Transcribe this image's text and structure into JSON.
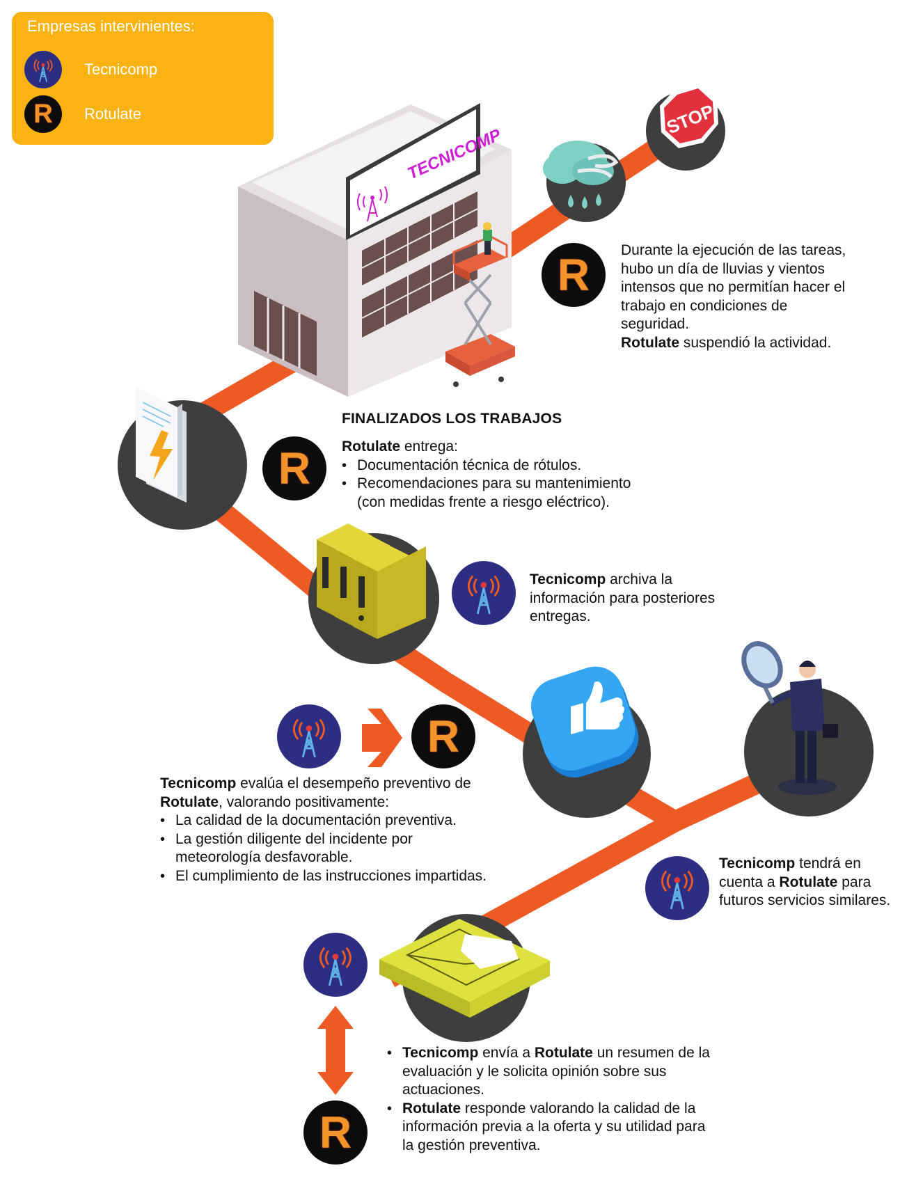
{
  "legend": {
    "title": "Empresas intervinientes:",
    "items": [
      {
        "label": "Tecnicomp",
        "logo": "tecnicomp-logo"
      },
      {
        "label": "Rotulate",
        "logo": "rotulate-logo"
      }
    ]
  },
  "building_sign": "TECNICOMP",
  "stop_sign": "STOP",
  "rotulate_logo_letter": "R",
  "step_weather": {
    "line1": "Durante la ejecución de las tareas,",
    "line2": "hubo un día de lluvias y vientos",
    "line3": "intensos que no permitían hacer el",
    "line4": "trabajo en condiciones de",
    "line5": "seguridad.",
    "company": "Rotulate",
    "action": " suspendió la actividad."
  },
  "step_finish": {
    "heading": "FINALIZADOS LOS TRABAJOS",
    "company": "Rotulate",
    "intro": " entrega:",
    "bullets": [
      "Documentación técnica de rótulos.",
      "Recomendaciones para su mantenimiento"
    ],
    "bullet2_cont": "(con medidas frente a riesgo eléctrico)."
  },
  "step_archive": {
    "company": "Tecnicomp",
    "line1": " archiva la",
    "line2": "información para posteriores",
    "line3": "entregas."
  },
  "step_evaluate": {
    "company": "Tecnicomp",
    "line1": " evalúa el desempeño preventivo de",
    "company2": "Rotulate",
    "line2": ", valorando positivamente:",
    "bullets": [
      "La calidad de la documentación preventiva.",
      "La gestión diligente del incidente por",
      "El cumplimiento de las instrucciones impartidas."
    ],
    "bullet2_cont": "meteorología desfavorable."
  },
  "step_future": {
    "company": "Tecnicomp",
    "line1": " tendrá en",
    "line2a": "cuenta a ",
    "company2": "Rotulate",
    "line2b": " para",
    "line3": "futuros servicios similares."
  },
  "step_feedback": {
    "b1_company": "Tecnicomp",
    "b1_mid": " envía a ",
    "b1_company2": "Rotulate",
    "b1_end": " un resumen de la",
    "b1_line2": "evaluación y le solicita opinión sobre sus",
    "b1_line3": "actuaciones.",
    "b2_company": "Rotulate",
    "b2_end": " responde valorando la calidad de la",
    "b2_line2": "información previa a la oferta y su utilidad para",
    "b2_line3": "la gestión preventiva."
  },
  "colors": {
    "path": "#ee5a24",
    "legend_bg": "#fbb213",
    "tecnicomp": "#2d2e82",
    "rotulate": "#0c0c0c",
    "rotulate_letter": "#f2932a",
    "circle": "#3e3e3e"
  }
}
